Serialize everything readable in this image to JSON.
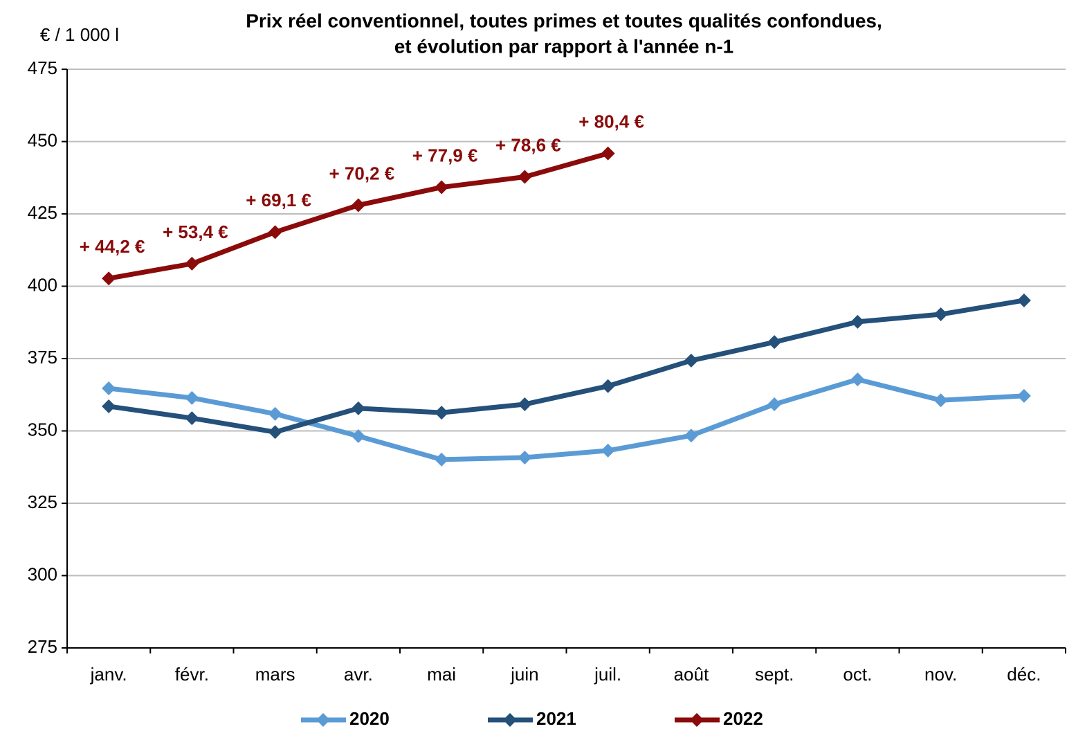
{
  "chart_data": {
    "type": "line",
    "title": [
      "Prix réel conventionnel, toutes primes et toutes qualités confondues,",
      "et évolution par rapport à l'année n-1"
    ],
    "y_label": "€ / 1 000 l",
    "categories": [
      "janv.",
      "févr.",
      "mars",
      "avr.",
      "mai",
      "juin",
      "juil.",
      "août",
      "sept.",
      "oct.",
      "nov.",
      "déc."
    ],
    "series": [
      {
        "name": "2020",
        "color": "#5b9bd5",
        "values": [
          364.7,
          361.4,
          355.9,
          348.2,
          340.1,
          340.8,
          343.2,
          348.4,
          359.2,
          367.8,
          360.6,
          362.1
        ]
      },
      {
        "name": "2021",
        "color": "#24507a",
        "values": [
          358.5,
          354.4,
          349.6,
          357.8,
          356.3,
          359.2,
          365.5,
          374.3,
          380.7,
          387.7,
          390.3,
          395.1
        ]
      },
      {
        "name": "2022",
        "color": "#8b0a0a",
        "values": [
          402.7,
          407.8,
          418.7,
          428.0,
          434.2,
          437.8,
          445.9,
          null,
          null,
          null,
          null,
          null
        ]
      }
    ],
    "annotations": [
      "+ 44,2 €",
      "+ 53,4 €",
      "+ 69,1 €",
      "+ 70,2 €",
      "+ 77,9 €",
      "+ 78,6 €",
      "+ 80,4 €"
    ],
    "annotation_color": "#8b0a0a",
    "ylim": [
      275,
      475
    ],
    "yticks": [
      275,
      300,
      325,
      350,
      375,
      400,
      425,
      450,
      475
    ],
    "grid": true,
    "legend": "bottom"
  }
}
